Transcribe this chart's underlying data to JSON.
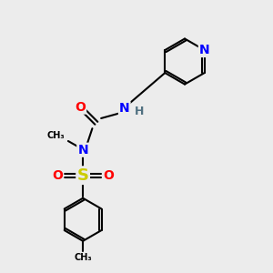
{
  "bg_color": "#ececec",
  "atom_colors": {
    "N": "#0000ff",
    "O": "#ff0000",
    "S": "#cccc00",
    "H": "#507080",
    "C": "#000000"
  },
  "bond_color": "#000000",
  "bond_width": 1.5,
  "figsize": [
    3.0,
    3.0
  ],
  "dpi": 100,
  "xlim": [
    0,
    10
  ],
  "ylim": [
    0,
    10
  ]
}
